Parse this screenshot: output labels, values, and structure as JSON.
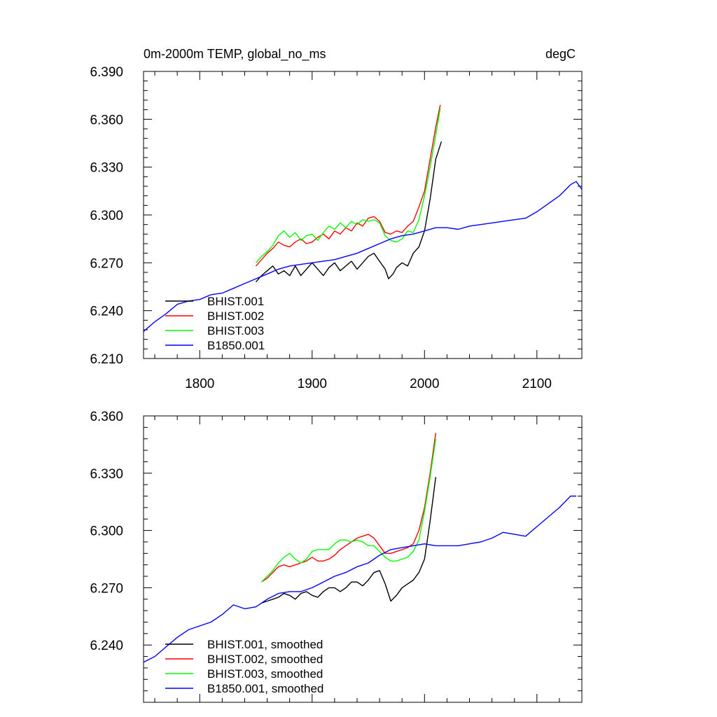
{
  "chart_data": [
    {
      "type": "line",
      "title": "0m-2000m TEMP, global_no_ms",
      "units": "degC",
      "xlabel": "",
      "ylabel": "",
      "xlim": [
        1750,
        2140
      ],
      "ylim": [
        6.21,
        6.39
      ],
      "xticks": [
        1800,
        1900,
        2000,
        2100
      ],
      "xtick_labels": [
        "1800",
        "1900",
        "2000",
        "2100"
      ],
      "yticks": [
        6.21,
        6.24,
        6.27,
        6.3,
        6.33,
        6.36,
        6.39
      ],
      "ytick_labels": [
        "6.210",
        "6.240",
        "6.270",
        "6.300",
        "6.330",
        "6.360",
        "6.390"
      ],
      "grid": false,
      "legend_position": "bottom-left",
      "series": [
        {
          "name": "BHIST.001",
          "color": "#000000",
          "x": [
            1850,
            1855,
            1860,
            1865,
            1870,
            1875,
            1880,
            1885,
            1890,
            1895,
            1900,
            1905,
            1910,
            1915,
            1920,
            1925,
            1930,
            1935,
            1940,
            1945,
            1950,
            1955,
            1960,
            1965,
            1968,
            1972,
            1975,
            1980,
            1985,
            1990,
            1995,
            2000,
            2005,
            2010,
            2015
          ],
          "y": [
            6.258,
            6.262,
            6.265,
            6.268,
            6.263,
            6.265,
            6.262,
            6.268,
            6.262,
            6.266,
            6.27,
            6.266,
            6.262,
            6.267,
            6.27,
            6.265,
            6.268,
            6.271,
            6.266,
            6.27,
            6.274,
            6.276,
            6.271,
            6.266,
            6.26,
            6.263,
            6.267,
            6.27,
            6.268,
            6.276,
            6.28,
            6.29,
            6.31,
            6.335,
            6.346
          ]
        },
        {
          "name": "BHIST.002",
          "color": "#ff0000",
          "x": [
            1850,
            1855,
            1860,
            1865,
            1870,
            1875,
            1880,
            1885,
            1890,
            1895,
            1900,
            1905,
            1910,
            1915,
            1920,
            1925,
            1930,
            1935,
            1940,
            1945,
            1950,
            1955,
            1960,
            1965,
            1970,
            1975,
            1980,
            1985,
            1990,
            1995,
            2000,
            2005,
            2010,
            2014
          ],
          "y": [
            6.268,
            6.272,
            6.276,
            6.279,
            6.283,
            6.281,
            6.28,
            6.283,
            6.285,
            6.282,
            6.283,
            6.286,
            6.288,
            6.285,
            6.29,
            6.288,
            6.292,
            6.29,
            6.295,
            6.293,
            6.298,
            6.299,
            6.296,
            6.289,
            6.288,
            6.29,
            6.289,
            6.293,
            6.296,
            6.305,
            6.315,
            6.335,
            6.355,
            6.369
          ]
        },
        {
          "name": "BHIST.003",
          "color": "#00ff00",
          "x": [
            1850,
            1855,
            1860,
            1865,
            1870,
            1875,
            1880,
            1885,
            1890,
            1895,
            1900,
            1905,
            1910,
            1915,
            1920,
            1925,
            1930,
            1935,
            1940,
            1945,
            1950,
            1955,
            1960,
            1965,
            1970,
            1975,
            1980,
            1985,
            1990,
            1995,
            2000,
            2005,
            2010,
            2014
          ],
          "y": [
            6.27,
            6.274,
            6.277,
            6.281,
            6.287,
            6.29,
            6.286,
            6.289,
            6.284,
            6.287,
            6.288,
            6.284,
            6.289,
            6.293,
            6.291,
            6.295,
            6.292,
            6.296,
            6.294,
            6.297,
            6.296,
            6.297,
            6.295,
            6.287,
            6.284,
            6.283,
            6.285,
            6.29,
            6.289,
            6.297,
            6.312,
            6.33,
            6.35,
            6.367
          ]
        },
        {
          "name": "B1850.001",
          "color": "#0000ff",
          "x": [
            1750,
            1760,
            1770,
            1780,
            1790,
            1800,
            1810,
            1820,
            1830,
            1840,
            1850,
            1860,
            1870,
            1880,
            1890,
            1900,
            1910,
            1920,
            1930,
            1940,
            1950,
            1960,
            1970,
            1980,
            1990,
            2000,
            2010,
            2020,
            2030,
            2040,
            2050,
            2060,
            2070,
            2080,
            2090,
            2100,
            2110,
            2120,
            2130,
            2135,
            2140
          ],
          "y": [
            6.227,
            6.233,
            6.238,
            6.244,
            6.246,
            6.247,
            6.25,
            6.251,
            6.254,
            6.257,
            6.26,
            6.263,
            6.266,
            6.268,
            6.269,
            6.27,
            6.271,
            6.272,
            6.274,
            6.276,
            6.279,
            6.282,
            6.285,
            6.287,
            6.288,
            6.29,
            6.292,
            6.292,
            6.291,
            6.293,
            6.294,
            6.295,
            6.296,
            6.297,
            6.298,
            6.302,
            6.307,
            6.312,
            6.319,
            6.321,
            6.316
          ]
        }
      ]
    },
    {
      "type": "line",
      "title": "",
      "xlabel": "",
      "ylabel": "",
      "xlim": [
        1750,
        2140
      ],
      "ylim": [
        6.21,
        6.36
      ],
      "xticks": [
        1800,
        1900,
        2000,
        2100
      ],
      "yticks": [
        6.24,
        6.27,
        6.3,
        6.33,
        6.36
      ],
      "ytick_labels": [
        "6.240",
        "6.270",
        "6.300",
        "6.330",
        "6.360"
      ],
      "grid": false,
      "legend_position": "bottom-left",
      "series": [
        {
          "name": "BHIST.001, smoothed",
          "color": "#000000",
          "x": [
            1855,
            1860,
            1865,
            1870,
            1875,
            1880,
            1885,
            1890,
            1895,
            1900,
            1905,
            1910,
            1915,
            1920,
            1925,
            1930,
            1935,
            1940,
            1945,
            1950,
            1955,
            1960,
            1965,
            1970,
            1975,
            1980,
            1985,
            1990,
            1995,
            2000,
            2005,
            2010
          ],
          "y": [
            6.262,
            6.263,
            6.264,
            6.265,
            6.267,
            6.266,
            6.264,
            6.267,
            6.268,
            6.266,
            6.265,
            6.268,
            6.27,
            6.27,
            6.268,
            6.27,
            6.273,
            6.273,
            6.271,
            6.274,
            6.278,
            6.279,
            6.272,
            6.263,
            6.266,
            6.27,
            6.272,
            6.274,
            6.278,
            6.285,
            6.305,
            6.328
          ]
        },
        {
          "name": "BHIST.002, smoothed",
          "color": "#ff0000",
          "x": [
            1855,
            1860,
            1865,
            1870,
            1875,
            1880,
            1885,
            1890,
            1895,
            1900,
            1905,
            1910,
            1915,
            1920,
            1925,
            1930,
            1935,
            1940,
            1945,
            1950,
            1955,
            1960,
            1965,
            1970,
            1975,
            1980,
            1985,
            1990,
            1995,
            2000,
            2005,
            2010
          ],
          "y": [
            6.273,
            6.275,
            6.278,
            6.281,
            6.282,
            6.281,
            6.282,
            6.283,
            6.284,
            6.286,
            6.284,
            6.284,
            6.285,
            6.287,
            6.29,
            6.292,
            6.294,
            6.296,
            6.297,
            6.298,
            6.296,
            6.292,
            6.288,
            6.288,
            6.289,
            6.29,
            6.291,
            6.293,
            6.3,
            6.312,
            6.33,
            6.351
          ]
        },
        {
          "name": "BHIST.003, smoothed",
          "color": "#00ff00",
          "x": [
            1855,
            1860,
            1865,
            1870,
            1875,
            1880,
            1885,
            1890,
            1895,
            1900,
            1905,
            1910,
            1915,
            1920,
            1925,
            1930,
            1935,
            1940,
            1945,
            1950,
            1955,
            1960,
            1965,
            1970,
            1975,
            1980,
            1985,
            1990,
            1995,
            2000,
            2005,
            2010
          ],
          "y": [
            6.273,
            6.276,
            6.279,
            6.283,
            6.286,
            6.288,
            6.285,
            6.283,
            6.285,
            6.289,
            6.29,
            6.29,
            6.29,
            6.293,
            6.295,
            6.295,
            6.294,
            6.295,
            6.294,
            6.292,
            6.292,
            6.289,
            6.286,
            6.284,
            6.284,
            6.285,
            6.286,
            6.289,
            6.295,
            6.31,
            6.328,
            6.348
          ]
        },
        {
          "name": "B1850.001, smoothed",
          "color": "#0000ff",
          "x": [
            1750,
            1760,
            1770,
            1780,
            1790,
            1800,
            1810,
            1820,
            1830,
            1840,
            1850,
            1860,
            1870,
            1880,
            1890,
            1900,
            1910,
            1920,
            1930,
            1940,
            1950,
            1960,
            1970,
            1980,
            1990,
            2000,
            2010,
            2020,
            2030,
            2040,
            2050,
            2060,
            2070,
            2080,
            2090,
            2100,
            2110,
            2120,
            2130,
            2135
          ],
          "y": [
            6.231,
            6.234,
            6.239,
            6.244,
            6.248,
            6.25,
            6.252,
            6.256,
            6.261,
            6.259,
            6.26,
            6.264,
            6.267,
            6.268,
            6.268,
            6.27,
            6.273,
            6.276,
            6.278,
            6.281,
            6.283,
            6.287,
            6.29,
            6.291,
            6.292,
            6.293,
            6.292,
            6.292,
            6.292,
            6.293,
            6.294,
            6.296,
            6.299,
            6.298,
            6.297,
            6.302,
            6.307,
            6.312,
            6.318,
            6.318
          ]
        }
      ]
    }
  ]
}
